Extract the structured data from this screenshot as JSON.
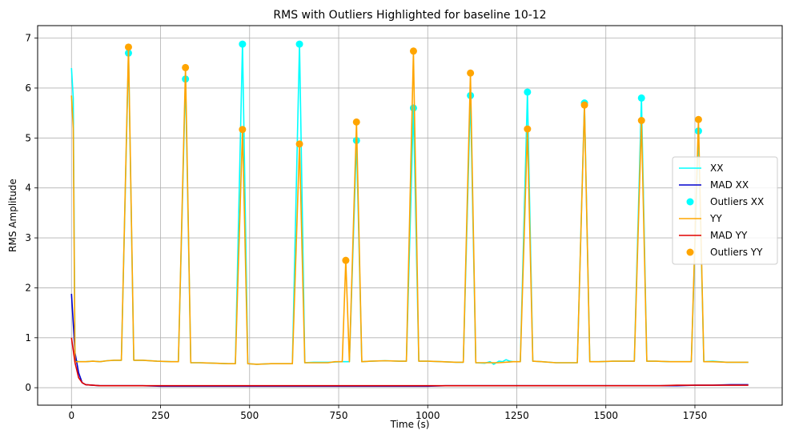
{
  "chart_data": {
    "type": "line",
    "title": "RMS with Outliers Highlighted for baseline 10-12",
    "xlabel": "Time (s)",
    "ylabel": "RMS Amplitude",
    "xlim": [
      -95,
      1995
    ],
    "ylim": [
      -0.35,
      7.25
    ],
    "xticks": [
      0,
      250,
      500,
      750,
      1000,
      1250,
      1500,
      1750
    ],
    "yticks": [
      0,
      1,
      2,
      3,
      4,
      5,
      6,
      7
    ],
    "grid": true,
    "legend_position": "center-right",
    "series": [
      {
        "name": "XX",
        "kind": "line",
        "color": "#00FFFF",
        "x": [
          0,
          5,
          10,
          20,
          40,
          60,
          80,
          100,
          120,
          140,
          160,
          175,
          200,
          240,
          280,
          300,
          320,
          335,
          360,
          400,
          440,
          460,
          480,
          495,
          520,
          560,
          600,
          620,
          640,
          655,
          680,
          720,
          760,
          780,
          800,
          815,
          840,
          880,
          920,
          940,
          960,
          975,
          1000,
          1040,
          1080,
          1100,
          1120,
          1135,
          1160,
          1175,
          1185,
          1200,
          1210,
          1220,
          1230,
          1240,
          1260,
          1280,
          1295,
          1320,
          1360,
          1400,
          1420,
          1440,
          1455,
          1480,
          1520,
          1560,
          1580,
          1600,
          1615,
          1640,
          1680,
          1720,
          1740,
          1760,
          1775,
          1800,
          1840,
          1880,
          1900
        ],
        "values": [
          6.4,
          5.8,
          0.55,
          0.52,
          0.52,
          0.53,
          0.52,
          0.54,
          0.55,
          0.55,
          6.7,
          0.55,
          0.55,
          0.53,
          0.52,
          0.52,
          6.2,
          0.5,
          0.5,
          0.49,
          0.48,
          0.48,
          6.9,
          0.48,
          0.47,
          0.48,
          0.48,
          0.48,
          6.9,
          0.5,
          0.51,
          0.51,
          0.52,
          0.52,
          4.95,
          0.52,
          0.53,
          0.54,
          0.53,
          0.53,
          5.6,
          0.53,
          0.53,
          0.52,
          0.51,
          0.51,
          5.85,
          0.5,
          0.49,
          0.52,
          0.47,
          0.53,
          0.52,
          0.56,
          0.53,
          0.52,
          0.52,
          5.92,
          0.53,
          0.52,
          0.5,
          0.5,
          0.5,
          5.7,
          0.52,
          0.52,
          0.53,
          0.53,
          0.53,
          5.8,
          0.53,
          0.53,
          0.52,
          0.52,
          0.52,
          5.14,
          0.52,
          0.53,
          0.51,
          0.51,
          0.51
        ]
      },
      {
        "name": "MAD XX",
        "kind": "line",
        "color": "#0000CD",
        "x": [
          0,
          10,
          20,
          30,
          40,
          60,
          80,
          100,
          150,
          200,
          250,
          300,
          350,
          400,
          450,
          500,
          550,
          600,
          650,
          700,
          750,
          800,
          850,
          900,
          950,
          1000,
          1050,
          1100,
          1150,
          1200,
          1250,
          1300,
          1350,
          1400,
          1450,
          1500,
          1550,
          1600,
          1650,
          1700,
          1750,
          1800,
          1850,
          1900
        ],
        "values": [
          1.88,
          0.7,
          0.3,
          0.1,
          0.06,
          0.05,
          0.04,
          0.04,
          0.04,
          0.04,
          0.03,
          0.03,
          0.03,
          0.03,
          0.03,
          0.03,
          0.03,
          0.03,
          0.03,
          0.03,
          0.03,
          0.03,
          0.03,
          0.03,
          0.03,
          0.03,
          0.04,
          0.04,
          0.04,
          0.04,
          0.04,
          0.04,
          0.04,
          0.04,
          0.04,
          0.04,
          0.04,
          0.04,
          0.04,
          0.04,
          0.05,
          0.05,
          0.06,
          0.06
        ]
      },
      {
        "name": "Outliers XX",
        "kind": "scatter",
        "color": "#00FFFF",
        "x": [
          160,
          320,
          480,
          640,
          800,
          960,
          1120,
          1280,
          1440,
          1600,
          1760
        ],
        "values": [
          6.7,
          6.18,
          6.88,
          6.88,
          4.95,
          5.6,
          5.85,
          5.92,
          5.7,
          5.8,
          5.14
        ]
      },
      {
        "name": "YY",
        "kind": "line",
        "color": "#FFA500",
        "x": [
          0,
          5,
          10,
          20,
          40,
          60,
          80,
          100,
          120,
          140,
          160,
          175,
          200,
          240,
          280,
          300,
          320,
          335,
          360,
          400,
          440,
          460,
          480,
          495,
          520,
          560,
          600,
          620,
          640,
          655,
          680,
          720,
          740,
          760,
          770,
          780,
          800,
          815,
          840,
          880,
          920,
          940,
          960,
          975,
          1000,
          1040,
          1080,
          1100,
          1120,
          1135,
          1160,
          1200,
          1240,
          1260,
          1280,
          1295,
          1320,
          1360,
          1400,
          1420,
          1440,
          1455,
          1480,
          1520,
          1560,
          1580,
          1600,
          1615,
          1640,
          1680,
          1720,
          1740,
          1760,
          1775,
          1800,
          1840,
          1880,
          1900
        ],
        "values": [
          5.85,
          5.2,
          0.52,
          0.52,
          0.52,
          0.53,
          0.52,
          0.54,
          0.55,
          0.55,
          6.82,
          0.55,
          0.55,
          0.53,
          0.52,
          0.52,
          6.41,
          0.5,
          0.5,
          0.49,
          0.48,
          0.48,
          5.17,
          0.48,
          0.47,
          0.48,
          0.48,
          0.48,
          4.88,
          0.5,
          0.5,
          0.5,
          0.52,
          0.52,
          2.55,
          0.52,
          5.32,
          0.52,
          0.53,
          0.54,
          0.53,
          0.53,
          6.74,
          0.53,
          0.53,
          0.52,
          0.51,
          0.51,
          6.3,
          0.5,
          0.5,
          0.5,
          0.52,
          0.52,
          5.18,
          0.53,
          0.52,
          0.5,
          0.5,
          0.5,
          5.66,
          0.52,
          0.52,
          0.53,
          0.53,
          0.53,
          5.35,
          0.53,
          0.53,
          0.52,
          0.52,
          0.52,
          5.37,
          0.52,
          0.52,
          0.51,
          0.51,
          0.51
        ]
      },
      {
        "name": "MAD YY",
        "kind": "line",
        "color": "#E00000",
        "x": [
          0,
          10,
          20,
          30,
          40,
          60,
          80,
          100,
          150,
          200,
          250,
          300,
          350,
          400,
          450,
          500,
          550,
          600,
          650,
          700,
          750,
          800,
          850,
          900,
          950,
          1000,
          1050,
          1100,
          1150,
          1200,
          1250,
          1300,
          1350,
          1400,
          1450,
          1500,
          1550,
          1600,
          1650,
          1700,
          1750,
          1800,
          1850,
          1900
        ],
        "values": [
          1.0,
          0.5,
          0.2,
          0.1,
          0.06,
          0.05,
          0.04,
          0.04,
          0.04,
          0.04,
          0.04,
          0.04,
          0.04,
          0.04,
          0.04,
          0.04,
          0.04,
          0.04,
          0.04,
          0.04,
          0.04,
          0.04,
          0.04,
          0.04,
          0.04,
          0.04,
          0.04,
          0.04,
          0.04,
          0.04,
          0.04,
          0.04,
          0.04,
          0.04,
          0.04,
          0.04,
          0.04,
          0.04,
          0.04,
          0.05,
          0.05,
          0.05,
          0.05,
          0.05
        ]
      },
      {
        "name": "Outliers YY",
        "kind": "scatter",
        "color": "#FFA500",
        "x": [
          160,
          320,
          480,
          640,
          770,
          800,
          960,
          1120,
          1280,
          1440,
          1600,
          1760
        ],
        "values": [
          6.82,
          6.41,
          5.17,
          4.88,
          2.55,
          5.32,
          6.74,
          6.3,
          5.18,
          5.66,
          5.35,
          5.37
        ]
      }
    ]
  }
}
